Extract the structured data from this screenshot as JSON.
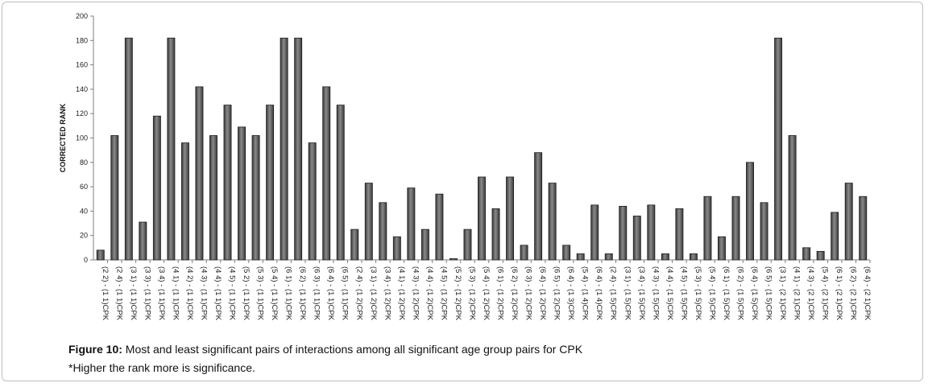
{
  "colors": {
    "bar": "#3a3a3a",
    "bar_highlight": "#8a8a8a",
    "axis": "#7f7f7f",
    "border": "#bdbdbd"
  },
  "caption": {
    "label": "Figure 10:",
    "text": " Most and least significant pairs of interactions among all significant age group pairs for CPK",
    "note": "*Higher the rank more is significance."
  },
  "chart_data": {
    "type": "bar",
    "ylabel": "CORRECTED RANK",
    "xlabel": "",
    "ylim": [
      0,
      200
    ],
    "yticks": [
      0,
      20,
      40,
      60,
      80,
      100,
      120,
      140,
      160,
      180,
      200
    ],
    "grid": false,
    "categories": [
      "(2 2) - (1 1)CPK",
      "(2 4) - (1 1)CPK",
      "(3 1) - (1 1)CPK",
      "(3 3) - (1 1)CPK",
      "(3 4) - (1 1)CPK",
      "(4 1) - (1 1)CPK",
      "(4 2) - (1 1)CPK",
      "(4 3) - (1 1)CPK",
      "(4 4) - (1 1)CPK",
      "(4 5) - (1 1)CPK",
      "(5 2) - (1 1)CPK",
      "(5 3) - (1 1)CPK",
      "(5 4) - (1 1)CPK",
      "(6 1) - (1 1)CPK",
      "(6 2) - (1 1)CPK",
      "(6 3) - (1 1)CPK",
      "(6 4) - (1 1)CPK",
      "(6 5) - (1 1)CPK",
      "(2 4) - (1 2)CPK",
      "(3 1) - (1 2)CPK",
      "(3 4) - (1 2)CPK",
      "(4 1) - (1 2)CPK",
      "(4 3) - (1 2)CPK",
      "(4 4) - (1 2)CPK",
      "(4 5) - (1 2)CPK",
      "(5 2) - (1 2)CPK",
      "(5 3) - (1 2)CPK",
      "(5 4) - (1 2)CPK",
      "(6 1) - (1 2)CPK",
      "(6 2) - (1 2)CPK",
      "(6 3) - (1 2)CPK",
      "(6 4) - (1 2)CPK",
      "(6 5) - (1 2)CPK",
      "(6 4) - (1 3)CPK",
      "(5 4) - (1 4)CPK",
      "(6 4) - (1 4)CPK",
      "(2 4) - (1 5)CPK",
      "(3 1) - (1 5)CPK",
      "(3 4) - (1 5)CPK",
      "(4 3) - (1 5)CPK",
      "(4 4) - (1 5)CPK",
      "(4 5) - (1 5)CPK",
      "(5 3) - (1 5)CPK",
      "(5 4) - (1 5)CPK",
      "(6 1) - (1 5)CPK",
      "(6 2) - (1 5)CPK",
      "(6 4) - (1 5)CPK",
      "(6 5) - (1 5)CPK",
      "(3 1) - (2 1)CPK",
      "(4 1) - (2 1)CPK",
      "(4 3) - (2 1)CPK",
      "(5 4) - (2 1)CPK",
      "(6 1) - (2 1)CPK",
      "(6 2) - (2 1)CPK",
      "(6 4) - (2 1)CPK"
    ],
    "values": [
      8,
      102,
      182,
      31,
      118,
      182,
      96,
      142,
      102,
      127,
      109,
      102,
      127,
      182,
      182,
      96,
      142,
      127,
      25,
      63,
      47,
      19,
      59,
      25,
      54,
      1,
      25,
      68,
      42,
      68,
      12,
      88,
      63,
      12,
      5,
      45,
      5,
      44,
      36,
      45,
      5,
      42,
      5,
      52,
      19,
      52,
      80,
      47,
      182,
      102,
      10,
      7,
      39,
      63,
      52
    ]
  }
}
